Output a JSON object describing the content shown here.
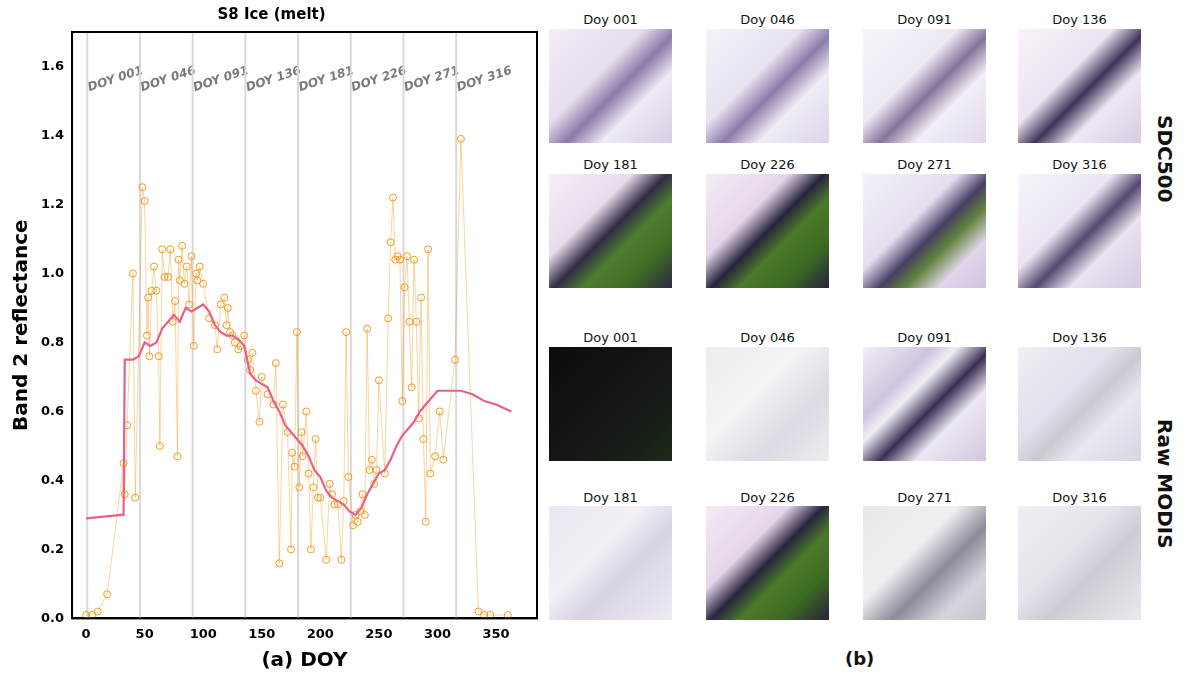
{
  "chart_data": {
    "type": "scatter",
    "title": "S8 Ice (melt)",
    "x_label": "(a) DOY",
    "y_label": "Band 2 reflectance",
    "xlim": [
      -12,
      385
    ],
    "xticks": [
      0,
      50,
      100,
      150,
      200,
      250,
      300,
      350
    ],
    "ylim": [
      0,
      1.7
    ],
    "yticks": [
      {
        "value": 0,
        "label": "0.0"
      },
      0.2,
      0.4,
      0.6,
      0.8,
      {
        "value": 1,
        "label": "1.0"
      },
      1.2,
      1.4,
      1.6
    ],
    "grid": false,
    "vlines": [
      {
        "value": 1,
        "label": "DOY 001"
      },
      {
        "value": 46,
        "label": "DOY 046"
      },
      {
        "value": 91,
        "label": "DOY 091"
      },
      {
        "value": 136,
        "label": "DOY 136"
      },
      {
        "value": 181,
        "label": "DOY 181"
      },
      {
        "value": 226,
        "label": "DOY 226"
      },
      {
        "value": 271,
        "label": "DOY 271"
      },
      {
        "value": 316,
        "label": "DOY 316"
      }
    ],
    "series": [
      {
        "type": "scatter",
        "color": "#f39a1e",
        "marker": "circle",
        "line_style": "solid",
        "x": [
          0,
          5,
          10,
          18,
          32,
          33,
          35,
          40,
          42,
          48,
          50,
          52,
          53,
          54,
          56,
          58,
          60,
          62,
          63,
          65,
          67,
          70,
          72,
          74,
          76,
          78,
          79,
          80,
          82,
          84,
          86,
          88,
          90,
          92,
          94,
          95,
          97,
          100,
          105,
          110,
          112,
          115,
          118,
          120,
          121,
          123,
          125,
          127,
          130,
          132,
          135,
          138,
          140,
          142,
          145,
          148,
          150,
          155,
          160,
          162,
          165,
          168,
          172,
          175,
          176,
          178,
          180,
          182,
          184,
          185,
          188,
          190,
          192,
          194,
          196,
          198,
          200,
          205,
          208,
          210,
          212,
          215,
          218,
          220,
          222,
          224,
          228,
          230,
          232,
          234,
          236,
          238,
          240,
          242,
          244,
          246,
          248,
          250,
          255,
          258,
          260,
          262,
          264,
          266,
          268,
          270,
          272,
          274,
          276,
          278,
          280,
          282,
          284,
          286,
          288,
          290,
          292,
          294,
          298,
          302,
          305,
          315,
          320,
          335,
          340,
          345,
          360
        ],
        "values": [
          0.01,
          0.01,
          0.02,
          0.07,
          0.45,
          0.36,
          0.56,
          1.0,
          0.35,
          1.25,
          1.21,
          0.82,
          0.93,
          0.76,
          0.95,
          1.02,
          0.95,
          0.76,
          0.5,
          1.07,
          0.99,
          0.99,
          1.07,
          0.86,
          0.92,
          0.47,
          1.04,
          0.98,
          1.08,
          0.97,
          1.02,
          0.91,
          1.05,
          0.79,
          1.0,
          0.98,
          1.02,
          0.97,
          0.87,
          0.85,
          0.78,
          0.91,
          0.93,
          0.85,
          0.9,
          0.83,
          0.82,
          0.8,
          0.78,
          0.79,
          0.82,
          0.75,
          0.72,
          0.77,
          0.66,
          0.57,
          0.7,
          0.65,
          0.62,
          0.74,
          0.16,
          0.62,
          0.54,
          0.2,
          0.48,
          0.44,
          0.83,
          0.38,
          0.54,
          0.47,
          0.6,
          0.42,
          0.2,
          0.38,
          0.52,
          0.35,
          0.35,
          0.17,
          0.39,
          0.36,
          0.33,
          0.33,
          0.17,
          0.34,
          0.83,
          0.41,
          0.27,
          0.3,
          0.28,
          0.31,
          0.36,
          0.3,
          0.84,
          0.43,
          0.46,
          0.39,
          0.43,
          0.69,
          0.42,
          0.87,
          1.09,
          1.22,
          1.04,
          1.05,
          1.04,
          0.63,
          0.96,
          1.05,
          0.86,
          0.67,
          1.04,
          0.86,
          0.58,
          0.93,
          0.52,
          0.28,
          1.07,
          0.42,
          0.47,
          0.6,
          0.46,
          0.75,
          1.39,
          0.02,
          0.01,
          0.01,
          0.01
        ]
      },
      {
        "type": "line",
        "color": "#e8608a",
        "marker": "none",
        "line_style": "solid",
        "x": [
          0,
          30,
          32,
          33,
          40,
          45,
          50,
          55,
          60,
          65,
          70,
          75,
          80,
          85,
          90,
          95,
          100,
          105,
          110,
          115,
          120,
          125,
          130,
          135,
          140,
          145,
          150,
          155,
          160,
          165,
          170,
          175,
          180,
          185,
          190,
          195,
          200,
          205,
          210,
          215,
          220,
          225,
          230,
          235,
          240,
          245,
          250,
          255,
          260,
          265,
          270,
          275,
          280,
          285,
          290,
          300,
          310,
          320,
          330,
          340,
          350,
          363
        ],
        "values": [
          0.29,
          0.3,
          0.3,
          0.75,
          0.75,
          0.76,
          0.8,
          0.79,
          0.8,
          0.84,
          0.86,
          0.88,
          0.86,
          0.9,
          0.89,
          0.9,
          0.91,
          0.89,
          0.85,
          0.83,
          0.82,
          0.82,
          0.81,
          0.79,
          0.71,
          0.69,
          0.68,
          0.67,
          0.63,
          0.6,
          0.56,
          0.54,
          0.52,
          0.5,
          0.47,
          0.43,
          0.41,
          0.37,
          0.35,
          0.34,
          0.33,
          0.31,
          0.3,
          0.32,
          0.36,
          0.39,
          0.42,
          0.43,
          0.46,
          0.5,
          0.53,
          0.55,
          0.57,
          0.6,
          0.62,
          0.66,
          0.66,
          0.66,
          0.65,
          0.63,
          0.62,
          0.6
        ]
      }
    ]
  },
  "panel_b": {
    "label": "(b)",
    "groups": [
      {
        "name": "SDC500",
        "tiles": [
          "Doy 001",
          "Doy 046",
          "Doy 091",
          "Doy 136",
          "Doy 181",
          "Doy 226",
          "Doy 271",
          "Doy 316"
        ]
      },
      {
        "name": "Raw MODIS",
        "tiles": [
          "Doy 001",
          "Doy 046",
          "Doy 091",
          "Doy 136",
          "Doy 181",
          "Doy 226",
          "Doy 271",
          "Doy 316"
        ]
      }
    ]
  }
}
